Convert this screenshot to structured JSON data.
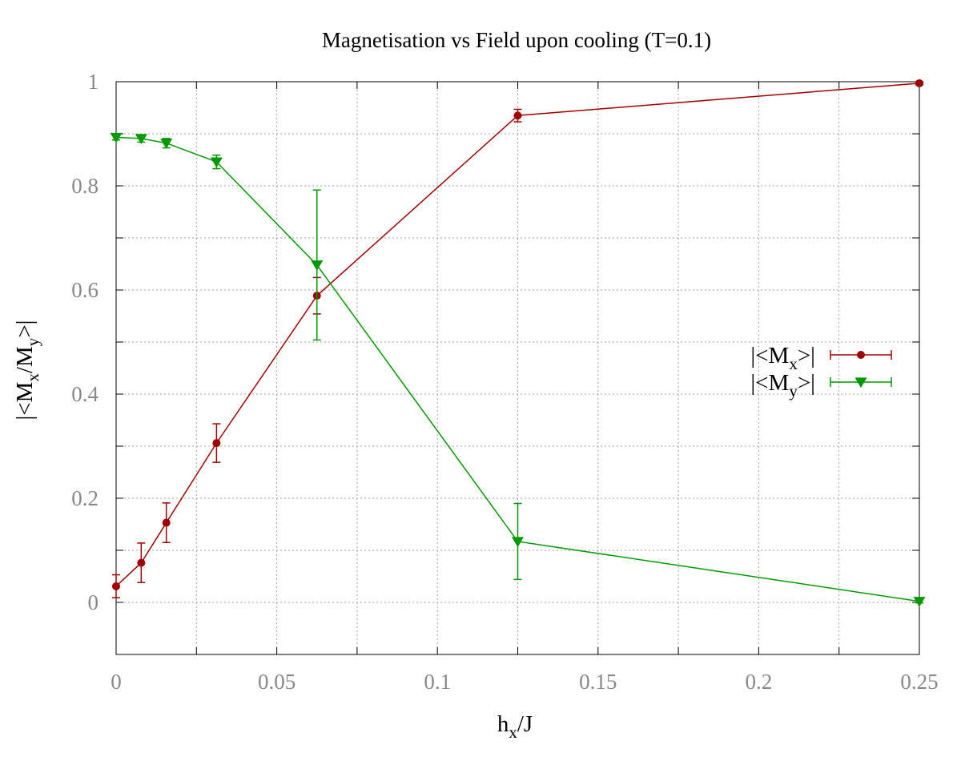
{
  "chart_data": {
    "type": "line",
    "title": "Magnetisation vs Field upon cooling (T=0.1)",
    "xlabel": {
      "main": "h",
      "sub": "x",
      "suffix": "/J"
    },
    "ylabel": {
      "p1": "|<M",
      "s1": "x",
      "p2": "/M",
      "s2": "y",
      "p3": ">|"
    },
    "xlim": [
      0,
      0.25
    ],
    "ylim": [
      -0.1,
      1.0
    ],
    "xticks": [
      0,
      0.05,
      0.1,
      0.15,
      0.2,
      0.25
    ],
    "xtick_labels": [
      "0",
      "0.05",
      "0.1",
      "0.15",
      "0.2",
      "0.25"
    ],
    "yticks": [
      0,
      0.2,
      0.4,
      0.6,
      0.8,
      1.0
    ],
    "ytick_labels": [
      "0",
      "0.2",
      "0.4",
      "0.6",
      "0.8",
      "1"
    ],
    "grid": true,
    "legend_position": "right",
    "series": [
      {
        "legend": {
          "prefix": "|<M",
          "sub": "x",
          "suffix": ">|"
        },
        "color": "#a00000",
        "marker": "circle",
        "x": [
          0,
          0.0078125,
          0.015625,
          0.03125,
          0.0625,
          0.125,
          0.25
        ],
        "y": [
          0.031,
          0.076,
          0.153,
          0.306,
          0.589,
          0.935,
          0.997
        ],
        "err": [
          0.022,
          0.038,
          0.038,
          0.037,
          0.035,
          0.012,
          0.003
        ]
      },
      {
        "legend": {
          "prefix": "|<M",
          "sub": "y",
          "suffix": ">|"
        },
        "color": "#009900",
        "marker": "triangle-down",
        "x": [
          0,
          0.0078125,
          0.015625,
          0.03125,
          0.0625,
          0.125,
          0.25
        ],
        "y": [
          0.893,
          0.891,
          0.882,
          0.846,
          0.648,
          0.117,
          0.002
        ],
        "err": [
          0.005,
          0.007,
          0.009,
          0.013,
          0.144,
          0.073,
          0.003
        ]
      }
    ]
  }
}
